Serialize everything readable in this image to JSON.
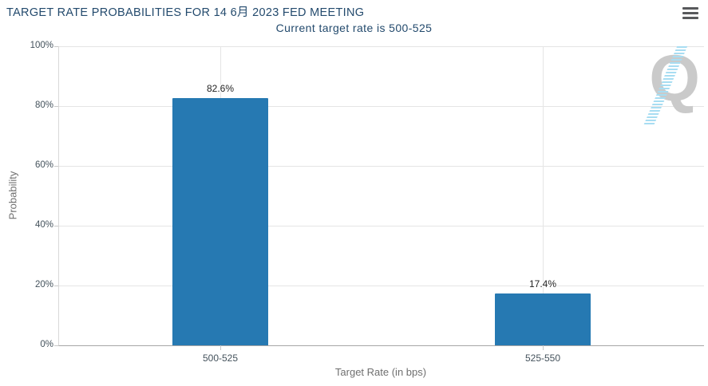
{
  "header": {
    "title": "TARGET RATE PROBABILITIES FOR 14 6月 2023 FED MEETING",
    "subtitle": "Current target rate is 500-525"
  },
  "watermark": {
    "letter": "Q"
  },
  "colors": {
    "bar": "#2679b2",
    "title": "#234a6d",
    "grid": "#e5e5e5",
    "axis_line": "#a6a6a6",
    "tick_label": "#44525c",
    "axis_title": "#6f6f6f",
    "menu_icon": "#58595b",
    "watermark_q": "#cacaca",
    "watermark_dashes": "#a8ddf2"
  },
  "chart_data": {
    "type": "bar",
    "title": "TARGET RATE PROBABILITIES FOR 14 6月 2023 FED MEETING",
    "subtitle": "Current target rate is 500-525",
    "categories": [
      "500-525",
      "525-550"
    ],
    "values": [
      82.6,
      17.4
    ],
    "data_labels": [
      "82.6%",
      "17.4%"
    ],
    "xlabel": "Target Rate (in bps)",
    "ylabel": "Probability",
    "ylim": [
      0,
      100
    ],
    "yticks": [
      0,
      20,
      40,
      60,
      80,
      100
    ],
    "ytick_labels": [
      "0%",
      "20%",
      "40%",
      "60%",
      "80%",
      "100%"
    ],
    "grid": "horizontal gridlines + vertical gridline at each category center",
    "legend": "none",
    "bar_color": "#2679b2"
  }
}
